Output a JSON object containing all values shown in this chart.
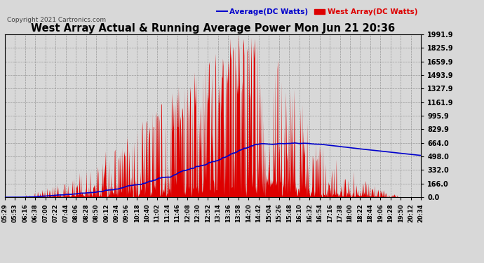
{
  "title": "West Array Actual & Running Average Power Mon Jun 21 20:36",
  "copyright": "Copyright 2021 Cartronics.com",
  "legend_average": "Average(DC Watts)",
  "legend_west": "West Array(DC Watts)",
  "yticks": [
    0.0,
    166.0,
    332.0,
    498.0,
    664.0,
    829.9,
    995.9,
    1161.9,
    1327.9,
    1493.9,
    1659.9,
    1825.9,
    1991.9
  ],
  "ymax": 1991.9,
  "ymin": 0.0,
  "bg_color": "#d8d8d8",
  "bar_color": "#dd0000",
  "avg_color": "#0000cc",
  "title_color": "#000000",
  "grid_color": "#aaaaaa",
  "xtick_labels": [
    "05:29",
    "05:53",
    "06:16",
    "06:38",
    "07:00",
    "07:22",
    "07:44",
    "08:06",
    "08:28",
    "08:50",
    "09:12",
    "09:34",
    "09:56",
    "10:18",
    "10:40",
    "11:02",
    "11:24",
    "11:46",
    "12:08",
    "12:30",
    "12:52",
    "13:14",
    "13:36",
    "13:58",
    "14:20",
    "14:42",
    "15:04",
    "15:26",
    "15:48",
    "16:10",
    "16:32",
    "16:54",
    "17:16",
    "17:38",
    "18:00",
    "18:22",
    "18:44",
    "19:06",
    "19:28",
    "19:50",
    "20:12",
    "20:34"
  ]
}
